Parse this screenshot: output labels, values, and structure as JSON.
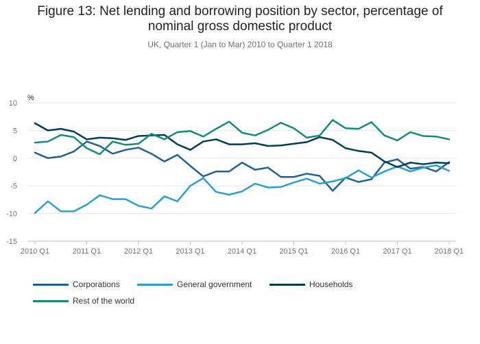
{
  "chart_data": {
    "type": "line",
    "title_line1": "Figure 13: Net lending and borrowing position by sector, percentage of",
    "title_line2": "nominal gross domestic product",
    "subtitle": "UK, Quarter 1 (Jan to Mar) 2010 to Quarter 1 2018",
    "ylabel": "%",
    "ylim": [
      -15,
      10
    ],
    "yticks": [
      10,
      5,
      0,
      -5,
      -10,
      -15
    ],
    "grid": true,
    "legend_position": "bottom",
    "x": [
      "2010 Q1",
      "2010 Q2",
      "2010 Q3",
      "2010 Q4",
      "2011 Q1",
      "2011 Q2",
      "2011 Q3",
      "2011 Q4",
      "2012 Q1",
      "2012 Q2",
      "2012 Q3",
      "2012 Q4",
      "2013 Q1",
      "2013 Q2",
      "2013 Q3",
      "2013 Q4",
      "2014 Q1",
      "2014 Q2",
      "2014 Q3",
      "2014 Q4",
      "2015 Q1",
      "2015 Q2",
      "2015 Q3",
      "2015 Q4",
      "2016 Q1",
      "2016 Q2",
      "2016 Q3",
      "2016 Q4",
      "2017 Q1",
      "2017 Q2",
      "2017 Q3",
      "2017 Q4",
      "2018 Q1"
    ],
    "x_tick_labels": [
      "2010 Q1",
      "2011 Q1",
      "2012 Q1",
      "2013 Q1",
      "2014 Q1",
      "2015 Q1",
      "2016 Q1",
      "2017 Q1",
      "2018 Q1"
    ],
    "series": [
      {
        "name": "Corporations",
        "color": "#206095",
        "values": [
          1.0,
          0.0,
          0.3,
          1.2,
          3.0,
          2.2,
          0.8,
          1.5,
          1.9,
          0.8,
          -0.6,
          0.6,
          -1.4,
          -3.3,
          -2.4,
          -2.4,
          -0.8,
          -2.1,
          -1.7,
          -3.4,
          -3.4,
          -2.8,
          -3.2,
          -5.9,
          -3.5,
          -4.3,
          -3.8,
          -0.8,
          -0.2,
          -1.9,
          -1.6,
          -2.4,
          -0.7
        ]
      },
      {
        "name": "General government",
        "color": "#27a0cc",
        "values": [
          -9.9,
          -7.8,
          -9.6,
          -9.6,
          -8.4,
          -6.7,
          -7.4,
          -7.4,
          -8.6,
          -9.1,
          -6.9,
          -7.8,
          -5.0,
          -3.6,
          -6.1,
          -6.6,
          -6.0,
          -4.6,
          -5.3,
          -5.2,
          -4.4,
          -3.7,
          -4.6,
          -4.2,
          -3.6,
          -2.2,
          -3.5,
          -2.4,
          -1.5,
          -2.4,
          -1.7,
          -1.3,
          -2.3
        ]
      },
      {
        "name": "Households",
        "color": "#003c57",
        "values": [
          6.3,
          5.0,
          5.3,
          4.8,
          3.4,
          3.7,
          3.6,
          3.3,
          4.0,
          4.1,
          4.2,
          2.5,
          1.5,
          3.0,
          3.4,
          2.5,
          2.5,
          2.7,
          2.2,
          2.3,
          2.6,
          2.9,
          3.8,
          3.3,
          1.8,
          1.3,
          1.0,
          -0.6,
          -1.6,
          -0.8,
          -1.1,
          -0.8,
          -0.9
        ]
      },
      {
        "name": "Rest of the world",
        "color": "#118c7b",
        "values": [
          2.8,
          3.0,
          4.2,
          3.8,
          1.8,
          0.7,
          3.0,
          2.4,
          2.6,
          4.4,
          3.4,
          4.7,
          4.9,
          3.9,
          5.3,
          6.6,
          4.6,
          4.1,
          5.1,
          6.4,
          5.4,
          3.7,
          4.1,
          6.9,
          5.4,
          5.3,
          6.5,
          4.1,
          3.2,
          4.7,
          4.0,
          3.9,
          3.4
        ]
      }
    ]
  }
}
